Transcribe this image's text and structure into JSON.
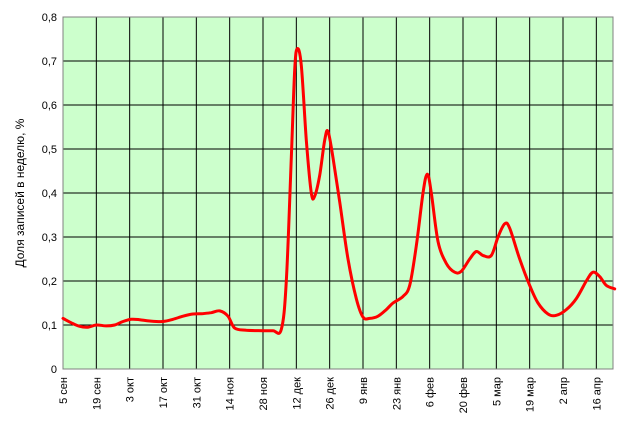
{
  "chart_data": {
    "type": "line",
    "title": "",
    "xlabel": "",
    "ylabel": "Доля записей в неделю, %",
    "ylim": [
      0,
      0.8
    ],
    "y_ticks": [
      "0",
      "0,1",
      "0,2",
      "0,3",
      "0,4",
      "0,5",
      "0,6",
      "0,7",
      "0,8"
    ],
    "x_ticks": [
      "5 сен",
      "19 сен",
      "3 окт",
      "17 окт",
      "31 окт",
      "14 ноя",
      "28 ноя",
      "12 дек",
      "26 дек",
      "9 янв",
      "23 янв",
      "6 фев",
      "20 фев",
      "5 мар",
      "19 мар",
      "2 апр",
      "16 апр"
    ],
    "grid": true,
    "legend": "none",
    "plot_background": "#CCFFCC",
    "line_color": "#FF0000",
    "series": [
      {
        "values": [
          [
            0.0,
            0.115
          ],
          [
            0.25,
            0.105
          ],
          [
            0.5,
            0.097
          ],
          [
            0.75,
            0.095
          ],
          [
            1.0,
            0.1
          ],
          [
            1.3,
            0.098
          ],
          [
            1.55,
            0.1
          ],
          [
            1.8,
            0.108
          ],
          [
            2.05,
            0.113
          ],
          [
            2.3,
            0.112
          ],
          [
            2.6,
            0.109
          ],
          [
            3.0,
            0.108
          ],
          [
            3.3,
            0.113
          ],
          [
            3.6,
            0.12
          ],
          [
            3.9,
            0.125
          ],
          [
            4.2,
            0.126
          ],
          [
            4.45,
            0.128
          ],
          [
            4.7,
            0.132
          ],
          [
            4.95,
            0.12
          ],
          [
            5.15,
            0.093
          ],
          [
            5.5,
            0.088
          ],
          [
            6.0,
            0.087
          ],
          [
            6.3,
            0.087
          ],
          [
            6.55,
            0.09
          ],
          [
            6.7,
            0.2
          ],
          [
            6.85,
            0.48
          ],
          [
            6.95,
            0.68
          ],
          [
            7.03,
            0.728
          ],
          [
            7.15,
            0.69
          ],
          [
            7.3,
            0.52
          ],
          [
            7.45,
            0.4
          ],
          [
            7.55,
            0.393
          ],
          [
            7.7,
            0.44
          ],
          [
            7.85,
            0.52
          ],
          [
            7.95,
            0.54
          ],
          [
            8.1,
            0.48
          ],
          [
            8.3,
            0.38
          ],
          [
            8.55,
            0.25
          ],
          [
            8.8,
            0.16
          ],
          [
            9.0,
            0.118
          ],
          [
            9.2,
            0.115
          ],
          [
            9.45,
            0.12
          ],
          [
            9.7,
            0.135
          ],
          [
            9.9,
            0.15
          ],
          [
            10.2,
            0.165
          ],
          [
            10.4,
            0.19
          ],
          [
            10.6,
            0.28
          ],
          [
            10.8,
            0.4
          ],
          [
            10.93,
            0.443
          ],
          [
            11.05,
            0.4
          ],
          [
            11.25,
            0.29
          ],
          [
            11.5,
            0.24
          ],
          [
            11.75,
            0.22
          ],
          [
            11.95,
            0.222
          ],
          [
            12.2,
            0.25
          ],
          [
            12.4,
            0.267
          ],
          [
            12.6,
            0.258
          ],
          [
            12.85,
            0.258
          ],
          [
            13.05,
            0.3
          ],
          [
            13.25,
            0.33
          ],
          [
            13.4,
            0.32
          ],
          [
            13.7,
            0.25
          ],
          [
            14.0,
            0.19
          ],
          [
            14.25,
            0.15
          ],
          [
            14.55,
            0.125
          ],
          [
            14.8,
            0.122
          ],
          [
            15.1,
            0.135
          ],
          [
            15.4,
            0.16
          ],
          [
            15.7,
            0.2
          ],
          [
            15.9,
            0.22
          ],
          [
            16.1,
            0.21
          ],
          [
            16.3,
            0.19
          ],
          [
            16.55,
            0.182
          ]
        ]
      }
    ]
  }
}
